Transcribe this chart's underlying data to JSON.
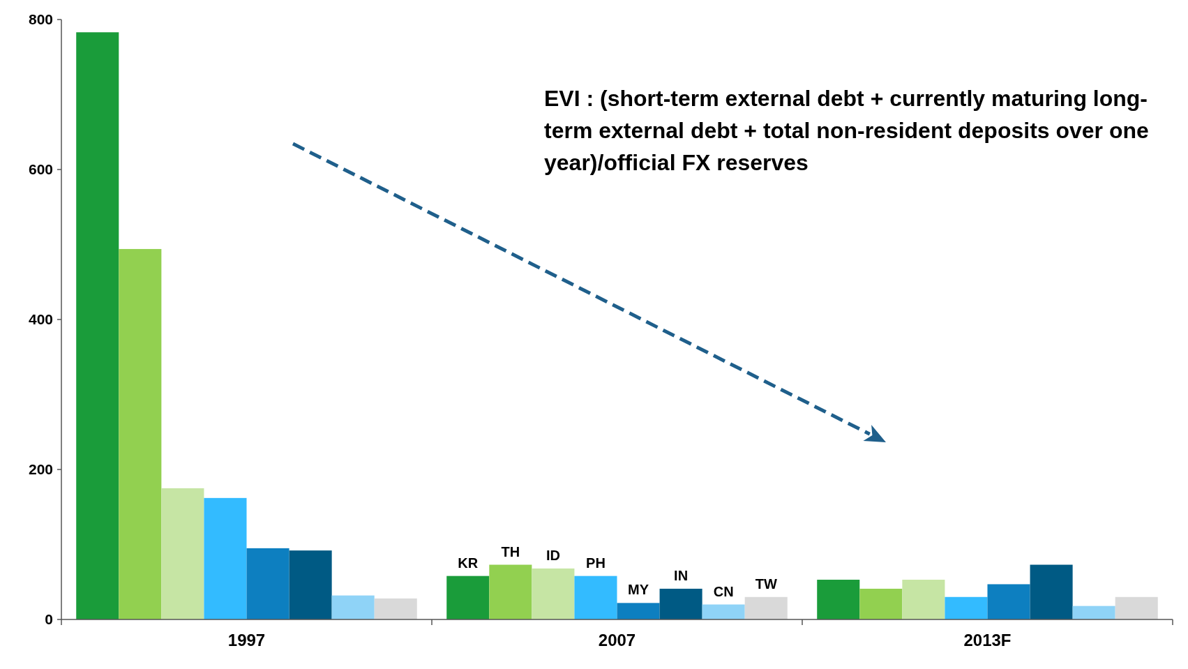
{
  "chart_data": {
    "type": "bar",
    "categories": [
      "1997",
      "2007",
      "2013F"
    ],
    "series": [
      {
        "name": "KR",
        "color": "#1a9c3a",
        "values": [
          783,
          58,
          53
        ]
      },
      {
        "name": "TH",
        "color": "#92d050",
        "values": [
          494,
          73,
          41
        ]
      },
      {
        "name": "ID",
        "color": "#c6e5a4",
        "values": [
          175,
          68,
          53
        ]
      },
      {
        "name": "PH",
        "color": "#33bbff",
        "values": [
          162,
          58,
          30
        ]
      },
      {
        "name": "MY",
        "color": "#0d7fc0",
        "values": [
          95,
          22,
          47
        ]
      },
      {
        "name": "IN",
        "color": "#005a84",
        "values": [
          92,
          41,
          73
        ]
      },
      {
        "name": "CN",
        "color": "#8fd3f7",
        "values": [
          32,
          20,
          18
        ]
      },
      {
        "name": "TW",
        "color": "#d9d9d9",
        "values": [
          28,
          30,
          30
        ]
      }
    ],
    "ylim": [
      0,
      800
    ],
    "yticks": [
      0,
      200,
      400,
      600,
      800
    ],
    "grid": false,
    "legend": false,
    "annotations": [
      "EVI :  (short-term external debt + currently maturing long-term external debt + total non-resident deposits over one year)/official FX reserves"
    ]
  }
}
